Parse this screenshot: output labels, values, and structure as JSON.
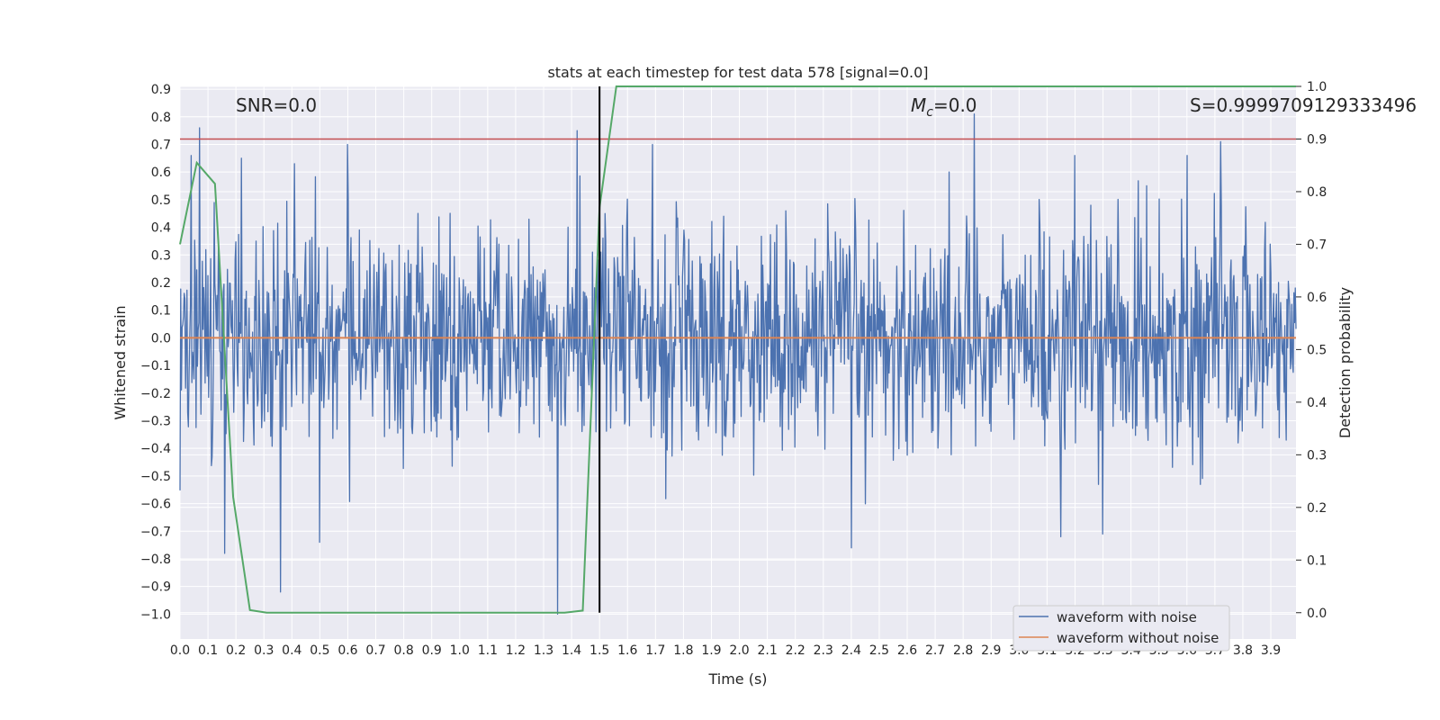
{
  "chart_data": {
    "type": "line",
    "title": "stats at each timestep for test data 578 [signal=0.0]",
    "xlabel": "Time (s)",
    "ylabel": "Whitened strain",
    "y2label": "Detection probability",
    "xlim": [
      0.0,
      3.99
    ],
    "ylim": [
      -1.09,
      0.91
    ],
    "y2lim": [
      -0.05,
      1.0
    ],
    "x_ticks": [
      0.0,
      0.1,
      0.2,
      0.3,
      0.4,
      0.5,
      0.6,
      0.7,
      0.8,
      0.9,
      1.0,
      1.1,
      1.2,
      1.3,
      1.4,
      1.5,
      1.6,
      1.7,
      1.8,
      1.9,
      2.0,
      2.1,
      2.2,
      2.3,
      2.4,
      2.5,
      2.6,
      2.7,
      2.8,
      2.9,
      3.0,
      3.1,
      3.2,
      3.3,
      3.4,
      3.5,
      3.6,
      3.7,
      3.8,
      3.9
    ],
    "x_tick_labels": [
      "0.0",
      "0.1",
      "0.2",
      "0.3",
      "0.4",
      "0.5",
      "0.6",
      "0.7",
      "0.8",
      "0.9",
      "1.0",
      "1.1",
      "1.2",
      "1.3",
      "1.4",
      "1.5",
      "1.6",
      "1.7",
      "1.8",
      "1.9",
      "2.0",
      "2.1",
      "2.2",
      "2.3",
      "2.4",
      "2.5",
      "2.6",
      "2.7",
      "2.8",
      "2.9",
      "3.0",
      "3.1",
      "3.2",
      "3.3",
      "3.4",
      "3.5",
      "3.6",
      "3.7",
      "3.8",
      "3.9"
    ],
    "y_ticks": [
      0.9,
      0.8,
      0.7,
      0.6,
      0.5,
      0.4,
      0.3,
      0.2,
      0.1,
      0.0,
      -0.1,
      -0.2,
      -0.3,
      -0.4,
      -0.5,
      -0.6,
      -0.7,
      -0.8,
      -0.9,
      -1.0
    ],
    "y_tick_labels": [
      "0.9",
      "0.8",
      "0.7",
      "0.6",
      "0.5",
      "0.4",
      "0.3",
      "0.2",
      "0.1",
      "0.0",
      "−0.1",
      "−0.2",
      "−0.3",
      "−0.4",
      "−0.5",
      "−0.6",
      "−0.7",
      "−0.8",
      "−0.9",
      "−1.0"
    ],
    "y2_ticks": [
      1.0,
      0.9,
      0.8,
      0.7,
      0.6,
      0.5,
      0.4,
      0.3,
      0.2,
      0.1,
      0.0
    ],
    "y2_tick_labels": [
      "1.0",
      "0.9",
      "0.8",
      "0.7",
      "0.6",
      "0.5",
      "0.4",
      "0.3",
      "0.2",
      "0.1",
      "0.0"
    ],
    "grid": true,
    "annotations": {
      "snr": "SNR=0.0",
      "mc": "=0.0",
      "mc_symbol": "M",
      "mc_sub": "c",
      "s": "S=0.9999709129333496"
    },
    "series": [
      {
        "name": "waveform with noise",
        "axis": "left",
        "color": "#4c72b0",
        "noise_std": 0.2,
        "n_samples": 1600,
        "spikes": [
          [
            0.04,
            0.66
          ],
          [
            0.07,
            0.76
          ],
          [
            0.16,
            0.57
          ],
          [
            0.22,
            0.65
          ],
          [
            0.6,
            0.7
          ],
          [
            0.41,
            0.63
          ],
          [
            1.42,
            0.75
          ],
          [
            1.52,
            0.45
          ],
          [
            1.69,
            0.7
          ],
          [
            2.84,
            0.81
          ],
          [
            3.72,
            0.71
          ],
          [
            3.2,
            0.66
          ],
          [
            3.6,
            0.66
          ],
          [
            0.16,
            -0.78
          ],
          [
            0.36,
            -0.92
          ],
          [
            1.35,
            -1.0
          ],
          [
            0.5,
            -0.74
          ],
          [
            2.4,
            -0.76
          ],
          [
            3.15,
            -0.72
          ],
          [
            3.3,
            -0.71
          ],
          [
            1.5,
            -0.7
          ]
        ]
      },
      {
        "name": "waveform without noise",
        "axis": "left",
        "color": "#dd8452",
        "x": [
          0.0,
          3.99
        ],
        "y": [
          0.0,
          0.0
        ]
      },
      {
        "name": "",
        "axis": "right",
        "color": "#55a868",
        "x": [
          0.0,
          0.06,
          0.125,
          0.19,
          0.25,
          0.31,
          0.375,
          1.375,
          1.44,
          1.5,
          1.56,
          3.99
        ],
        "y": [
          0.7,
          0.855,
          0.815,
          0.22,
          0.005,
          0.0,
          0.0,
          0.0,
          0.004,
          0.77,
          1.0,
          1.0
        ]
      }
    ],
    "threshold": {
      "axis": "right",
      "y": 0.9,
      "color": "#c44e52"
    },
    "event_line": {
      "x": 1.5,
      "axis": "right",
      "y_from": 0.0,
      "y_to": 1.0,
      "color": "#000000"
    },
    "legend": {
      "placement": "lower right",
      "entries": [
        "waveform with noise",
        "waveform without noise"
      ]
    }
  }
}
